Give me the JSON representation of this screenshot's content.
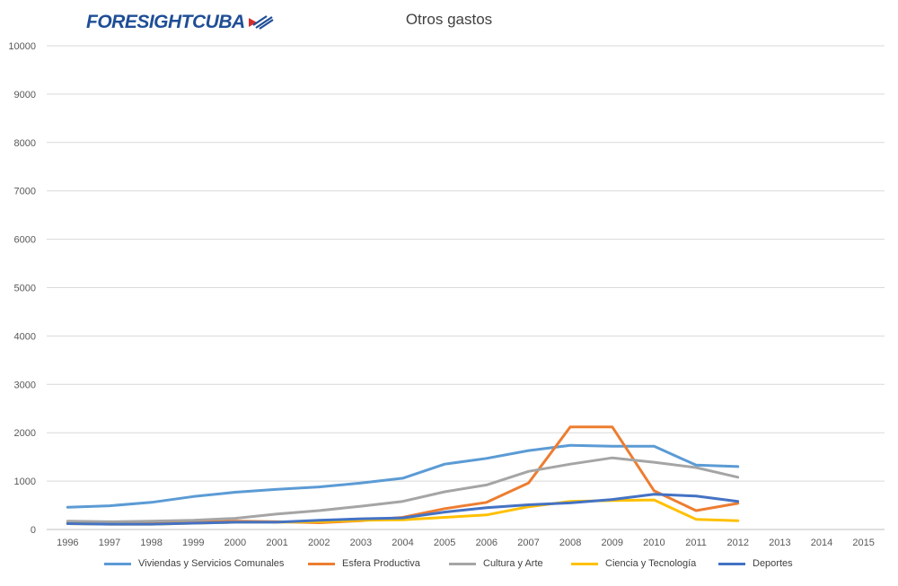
{
  "logo": {
    "text": "FORESIGHTCUBA"
  },
  "chart_data": {
    "type": "line",
    "title": "Otros gastos",
    "xlabel": "",
    "ylabel": "",
    "ylim": [
      0,
      10000
    ],
    "yticks": [
      0,
      1000,
      2000,
      3000,
      4000,
      5000,
      6000,
      7000,
      8000,
      9000,
      10000
    ],
    "grid": true,
    "legend_position": "bottom",
    "categories": [
      "1996",
      "1997",
      "1998",
      "1999",
      "2000",
      "2001",
      "2002",
      "2003",
      "2004",
      "2005",
      "2006",
      "2007",
      "2008",
      "2009",
      "2010",
      "2011",
      "2012",
      "2013",
      "2014",
      "2015"
    ],
    "series": [
      {
        "name": "Viviendas y Servicios Comunales",
        "color": "#5b9bd5",
        "values": [
          460,
          490,
          560,
          680,
          770,
          830,
          880,
          960,
          1060,
          1350,
          1470,
          1630,
          1740,
          1720,
          1720,
          1330,
          1300,
          null,
          null,
          null
        ]
      },
      {
        "name": "Esfera Productiva",
        "color": "#ed7d31",
        "values": [
          130,
          130,
          130,
          150,
          170,
          160,
          140,
          180,
          250,
          430,
          560,
          960,
          2120,
          2120,
          800,
          390,
          540,
          null,
          null,
          null
        ]
      },
      {
        "name": "Cultura y Arte",
        "color": "#a5a5a5",
        "values": [
          170,
          160,
          170,
          190,
          230,
          320,
          390,
          480,
          580,
          780,
          920,
          1200,
          1350,
          1480,
          1390,
          1280,
          1080,
          null,
          null,
          null
        ]
      },
      {
        "name": "Ciencia y Tecnología",
        "color": "#ffc000",
        "values": [
          120,
          110,
          110,
          130,
          150,
          150,
          160,
          190,
          200,
          250,
          300,
          470,
          580,
          600,
          610,
          210,
          180,
          null,
          null,
          null
        ]
      },
      {
        "name": "Deportes",
        "color": "#4472c4",
        "values": [
          120,
          110,
          110,
          130,
          150,
          150,
          190,
          220,
          240,
          360,
          450,
          510,
          550,
          620,
          730,
          690,
          580,
          null,
          null,
          null
        ]
      }
    ]
  }
}
